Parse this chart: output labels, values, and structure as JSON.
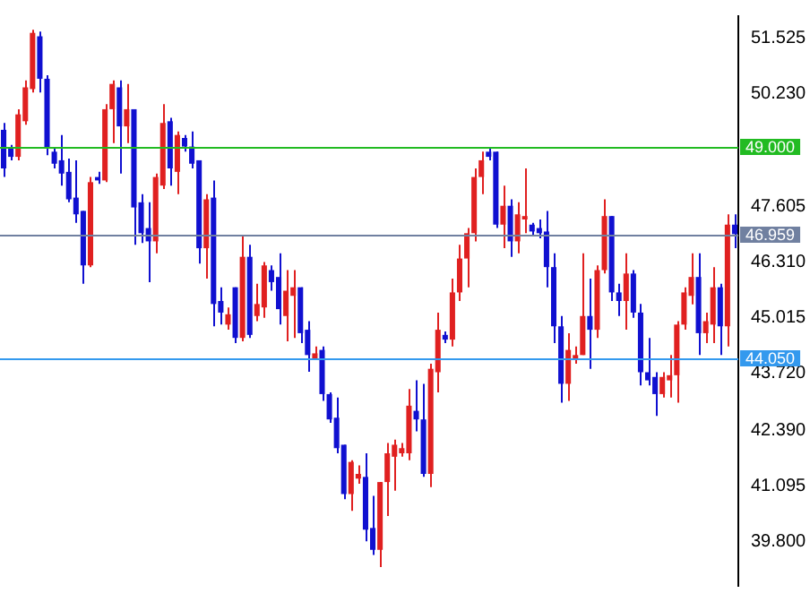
{
  "chart_data": {
    "type": "candlestick",
    "categories": [
      null,
      null,
      null,
      null,
      null,
      null,
      null,
      null,
      null,
      null,
      null,
      null,
      null,
      null,
      null,
      null,
      null,
      null,
      null,
      null,
      null,
      null,
      null,
      null,
      null,
      null,
      null,
      null,
      null,
      null,
      null,
      null,
      null,
      null,
      null,
      null,
      null,
      null,
      null,
      null,
      null,
      null,
      null,
      null,
      null,
      null,
      null,
      null,
      null,
      null,
      null,
      null,
      null,
      null,
      null,
      null,
      null,
      null,
      null,
      null,
      null,
      null,
      null,
      null,
      null,
      null,
      null,
      null,
      null,
      null,
      null,
      null,
      null,
      null,
      null,
      null,
      null,
      null,
      null,
      null,
      null,
      null,
      null,
      null,
      null,
      null,
      null,
      null,
      null,
      null,
      null,
      null,
      null,
      null,
      null,
      null,
      null,
      null,
      null,
      null,
      null,
      null
    ],
    "ohlc": [
      [
        49.39,
        49.55,
        48.29,
        48.49
      ],
      [
        48.96,
        49.04,
        48.68,
        48.76
      ],
      [
        48.76,
        49.87,
        48.68,
        49.75
      ],
      [
        49.59,
        50.54,
        49.51,
        50.38
      ],
      [
        50.34,
        51.72,
        50.26,
        51.65
      ],
      [
        51.57,
        51.68,
        50.26,
        50.58
      ],
      [
        50.58,
        50.66,
        48.8,
        48.96
      ],
      [
        48.88,
        48.96,
        48.49,
        48.6
      ],
      [
        48.68,
        49.27,
        48.09,
        48.37
      ],
      [
        48.41,
        48.72,
        47.7,
        47.77
      ],
      [
        47.81,
        48.68,
        47.22,
        47.42
      ],
      [
        47.5,
        47.5,
        45.8,
        46.23
      ],
      [
        46.23,
        48.29,
        46.19,
        48.17
      ],
      [
        48.29,
        48.41,
        48.13,
        48.21
      ],
      [
        48.21,
        49.99,
        48.17,
        49.87
      ],
      [
        49.87,
        50.54,
        49.08,
        50.46
      ],
      [
        50.38,
        50.54,
        48.37,
        49.47
      ],
      [
        49.47,
        50.46,
        49.08,
        49.87
      ],
      [
        49.87,
        49.87,
        46.71,
        47.58
      ],
      [
        47.7,
        47.89,
        46.75,
        46.98
      ],
      [
        47.1,
        47.7,
        45.84,
        46.79
      ],
      [
        46.79,
        48.37,
        46.51,
        48.29
      ],
      [
        48.09,
        49.99,
        48.01,
        49.55
      ],
      [
        49.59,
        49.67,
        48.09,
        48.49
      ],
      [
        48.41,
        49.35,
        47.89,
        49.27
      ],
      [
        49.2,
        49.27,
        48.88,
        49.0
      ],
      [
        49.0,
        49.35,
        48.49,
        48.6
      ],
      [
        48.68,
        48.68,
        46.27,
        46.63
      ],
      [
        46.63,
        47.89,
        45.92,
        47.77
      ],
      [
        47.81,
        48.21,
        44.81,
        45.33
      ],
      [
        45.4,
        45.72,
        44.85,
        45.13
      ],
      [
        44.85,
        45.25,
        44.73,
        45.09
      ],
      [
        45.72,
        45.72,
        44.42,
        44.54
      ],
      [
        44.54,
        46.91,
        44.46,
        46.43
      ],
      [
        46.43,
        46.71,
        44.54,
        44.61
      ],
      [
        45.05,
        45.8,
        44.93,
        45.33
      ],
      [
        45.25,
        46.31,
        45.01,
        46.23
      ],
      [
        46.12,
        46.23,
        45.64,
        45.84
      ],
      [
        45.96,
        46.51,
        44.85,
        45.21
      ],
      [
        45.05,
        46.12,
        44.46,
        45.64
      ],
      [
        45.52,
        46.12,
        44.54,
        45.72
      ],
      [
        45.72,
        45.72,
        44.42,
        44.65
      ],
      [
        44.73,
        44.93,
        43.75,
        44.14
      ],
      [
        44.06,
        44.34,
        44.02,
        44.18
      ],
      [
        44.26,
        44.34,
        43.07,
        43.23
      ],
      [
        43.23,
        43.27,
        42.56,
        42.64
      ],
      [
        42.68,
        43.15,
        41.85,
        41.97
      ],
      [
        42.05,
        42.05,
        40.78,
        40.9
      ],
      [
        40.9,
        41.69,
        40.51,
        41.65
      ],
      [
        41.26,
        41.57,
        41.14,
        41.37
      ],
      [
        41.3,
        41.85,
        39.8,
        40.07
      ],
      [
        40.11,
        40.86,
        39.48,
        39.6
      ],
      [
        39.6,
        41.18,
        39.2,
        41.18
      ],
      [
        41.18,
        42.09,
        40.39,
        41.85
      ],
      [
        41.77,
        42.17,
        40.98,
        42.05
      ],
      [
        41.85,
        42.09,
        41.77,
        41.97
      ],
      [
        41.85,
        43.35,
        41.69,
        42.96
      ],
      [
        42.84,
        43.55,
        42.36,
        42.64
      ],
      [
        42.64,
        43.47,
        41.3,
        41.37
      ],
      [
        41.37,
        43.94,
        41.06,
        43.82
      ],
      [
        43.74,
        45.13,
        43.27,
        44.73
      ],
      [
        44.61,
        44.69,
        44.42,
        44.5
      ],
      [
        44.5,
        45.92,
        44.34,
        45.6
      ],
      [
        45.6,
        46.71,
        45.4,
        46.39
      ],
      [
        46.39,
        47.1,
        45.72,
        46.98
      ],
      [
        46.98,
        48.49,
        46.79,
        48.29
      ],
      [
        48.29,
        48.88,
        47.89,
        48.68
      ],
      [
        48.88,
        48.96,
        48.68,
        48.76
      ],
      [
        48.88,
        48.88,
        47.1,
        47.18
      ],
      [
        47.18,
        48.09,
        46.63,
        47.62
      ],
      [
        47.62,
        47.77,
        46.43,
        46.79
      ],
      [
        46.79,
        47.7,
        46.51,
        47.42
      ],
      [
        47.3,
        48.49,
        46.98,
        47.38
      ],
      [
        47.18,
        47.22,
        46.94,
        47.02
      ],
      [
        47.1,
        47.3,
        46.86,
        46.98
      ],
      [
        47.02,
        47.5,
        45.72,
        46.19
      ],
      [
        46.19,
        46.51,
        44.42,
        44.81
      ],
      [
        44.81,
        45.05,
        43.03,
        43.47
      ],
      [
        43.47,
        44.65,
        43.07,
        44.26
      ],
      [
        44.06,
        44.34,
        43.94,
        44.14
      ],
      [
        44.14,
        46.51,
        44.14,
        45.05
      ],
      [
        45.05,
        45.92,
        43.82,
        44.73
      ],
      [
        44.73,
        46.23,
        44.54,
        46.12
      ],
      [
        46.12,
        47.77,
        46.04,
        47.38
      ],
      [
        47.38,
        47.38,
        45.4,
        45.6
      ],
      [
        45.6,
        45.8,
        45.05,
        45.4
      ],
      [
        45.4,
        46.51,
        44.73,
        46.04
      ],
      [
        46.04,
        46.12,
        45.01,
        45.13
      ],
      [
        45.13,
        45.33,
        43.43,
        43.74
      ],
      [
        43.74,
        44.54,
        43.43,
        43.55
      ],
      [
        43.63,
        43.74,
        42.72,
        43.23
      ],
      [
        43.23,
        43.74,
        43.15,
        43.63
      ],
      [
        43.55,
        44.14,
        43.15,
        43.67
      ],
      [
        43.67,
        44.93,
        43.03,
        44.85
      ],
      [
        44.85,
        45.72,
        44.73,
        45.6
      ],
      [
        45.52,
        46.51,
        45.32,
        45.96
      ],
      [
        45.96,
        46.51,
        44.14,
        44.65
      ],
      [
        44.65,
        45.13,
        44.42,
        44.93
      ],
      [
        44.85,
        46.19,
        44.42,
        45.72
      ],
      [
        45.72,
        45.8,
        44.14,
        44.81
      ],
      [
        44.81,
        47.42,
        44.34,
        47.18
      ],
      [
        47.18,
        47.42,
        46.63,
        46.959
      ]
    ],
    "colors": [
      "#1010d0",
      "#1010d0",
      "#e02020",
      "#e02020",
      "#e02020",
      "#1010d0",
      "#1010d0",
      "#1010d0",
      "#1010d0",
      "#1010d0",
      "#1010d0",
      "#1010d0",
      "#e02020",
      "#1010d0",
      "#e02020",
      "#e02020",
      "#1010d0",
      "#e02020",
      "#1010d0",
      "#1010d0",
      "#1010d0",
      "#e02020",
      "#e02020",
      "#1010d0",
      "#e02020",
      "#1010d0",
      "#1010d0",
      "#1010d0",
      "#e02020",
      "#1010d0",
      "#1010d0",
      "#e02020",
      "#1010d0",
      "#e02020",
      "#1010d0",
      "#e02020",
      "#e02020",
      "#1010d0",
      "#1010d0",
      "#e02020",
      "#e02020",
      "#1010d0",
      "#1010d0",
      "#e02020",
      "#1010d0",
      "#1010d0",
      "#1010d0",
      "#1010d0",
      "#e02020",
      "#e02020",
      "#1010d0",
      "#1010d0",
      "#e02020",
      "#e02020",
      "#e02020",
      "#e02020",
      "#e02020",
      "#1010d0",
      "#1010d0",
      "#e02020",
      "#e02020",
      "#1010d0",
      "#e02020",
      "#e02020",
      "#e02020",
      "#e02020",
      "#e02020",
      "#1010d0",
      "#1010d0",
      "#e02020",
      "#1010d0",
      "#e02020",
      "#e02020",
      "#1010d0",
      "#1010d0",
      "#1010d0",
      "#1010d0",
      "#1010d0",
      "#e02020",
      "#e02020",
      "#e02020",
      "#1010d0",
      "#e02020",
      "#e02020",
      "#1010d0",
      "#1010d0",
      "#e02020",
      "#1010d0",
      "#1010d0",
      "#1010d0",
      "#1010d0",
      "#e02020",
      "#e02020",
      "#e02020",
      "#e02020",
      "#e02020",
      "#1010d0",
      "#e02020",
      "#e02020",
      "#1010d0",
      "#e02020",
      "#1010d0"
    ],
    "ylim": [
      38.76,
      52.04
    ],
    "yticks": [
      51.525,
      {
        "value": 50.23,
        "label": "50.230"
      },
      47.605,
      {
        "value": 46.31,
        "label": "46.310"
      },
      45.015,
      {
        "value": 43.72,
        "label": "43.720"
      },
      {
        "value": 42.39,
        "label": "42.390"
      },
      41.095,
      {
        "value": 39.8,
        "label": "39.800"
      }
    ],
    "ref_lines": [
      {
        "axis": "y",
        "value": 49,
        "label": "49.000",
        "color": "#22bb22"
      },
      {
        "axis": "y",
        "value": 46.959,
        "label": "46.959",
        "color": "#7080a0"
      },
      {
        "axis": "y",
        "value": 44.05,
        "label": "44.050",
        "color": "#3399ee"
      }
    ],
    "grid": false,
    "legend": false,
    "tick_labels": "y"
  }
}
